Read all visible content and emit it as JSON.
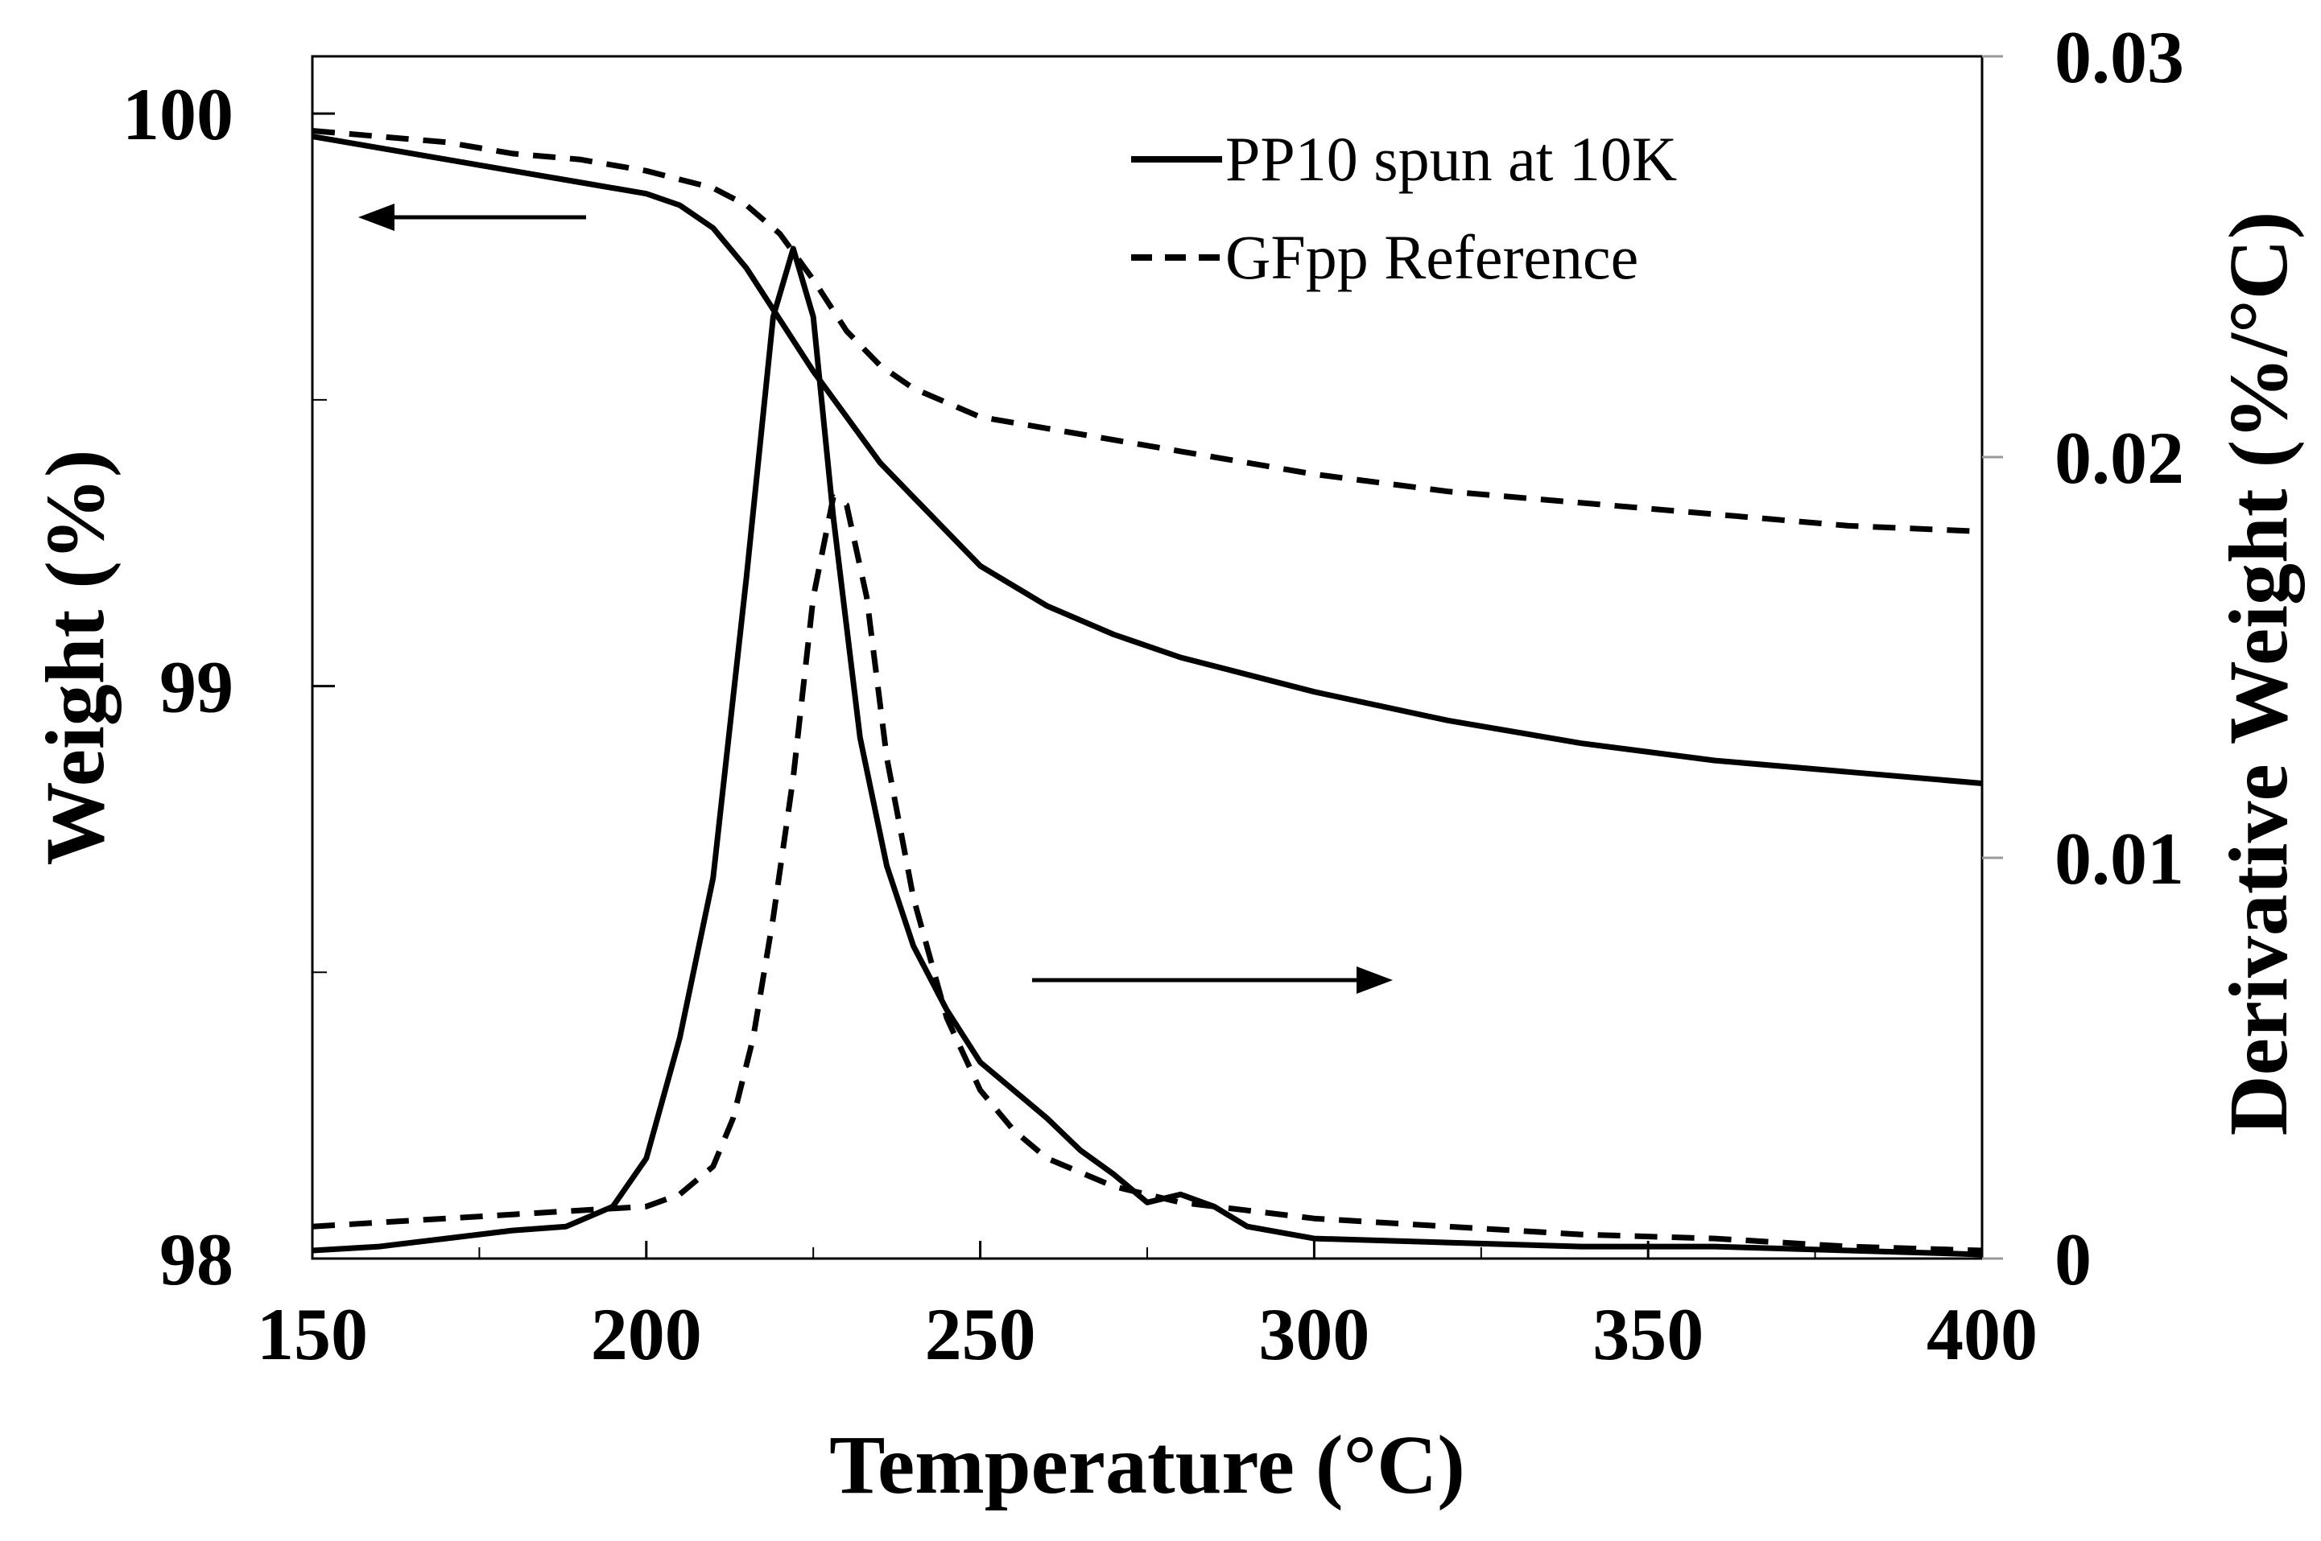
{
  "chart_data": {
    "type": "line",
    "title": "",
    "xlabel": "Temperature (°C)",
    "ylabel_left": "Weight (%)",
    "ylabel_right": "Derivative Weight (%/°C)",
    "xlim": [
      150,
      400
    ],
    "ylim_left": [
      98,
      100.1
    ],
    "ylim_right": [
      0,
      0.03
    ],
    "x_ticks": [
      150,
      200,
      250,
      300,
      350,
      400
    ],
    "x_tick_labels": [
      "150",
      "200",
      "250",
      "300",
      "350",
      "400"
    ],
    "y_left_ticks": [
      98,
      99,
      100
    ],
    "y_left_tick_labels": [
      "98",
      "99",
      "100"
    ],
    "y_right_ticks": [
      0,
      0.01,
      0.02,
      0.03
    ],
    "y_right_tick_labels": [
      "0",
      "0.01",
      "0.02",
      "0.03"
    ],
    "grid": false,
    "legend": {
      "position": "top-right",
      "entries": [
        {
          "label": "PP10 spun at 10K",
          "style": "solid"
        },
        {
          "label": "GFpp Reference",
          "style": "dashed"
        }
      ]
    },
    "annotations": [
      {
        "type": "arrow",
        "direction": "left",
        "meaning": "weight curves use left axis"
      },
      {
        "type": "arrow",
        "direction": "right",
        "meaning": "derivative curves use right axis"
      }
    ],
    "series": [
      {
        "name": "PP10 spun at 10K weight",
        "axis": "left",
        "style": "solid",
        "x": [
          150,
          160,
          170,
          180,
          190,
          200,
          205,
          210,
          215,
          220,
          225,
          230,
          235,
          240,
          250,
          260,
          270,
          280,
          290,
          300,
          320,
          340,
          360,
          380,
          400
        ],
        "y": [
          99.96,
          99.94,
          99.92,
          99.9,
          99.88,
          99.86,
          99.84,
          99.8,
          99.73,
          99.64,
          99.55,
          99.47,
          99.39,
          99.33,
          99.21,
          99.14,
          99.09,
          99.05,
          99.02,
          98.99,
          98.94,
          98.9,
          98.87,
          98.85,
          98.83
        ]
      },
      {
        "name": "GFpp Reference weight",
        "axis": "left",
        "style": "dashed",
        "x": [
          150,
          160,
          170,
          180,
          190,
          200,
          210,
          215,
          220,
          225,
          230,
          235,
          240,
          250,
          260,
          270,
          280,
          290,
          300,
          320,
          340,
          360,
          380,
          400
        ],
        "y": [
          99.97,
          99.96,
          99.95,
          99.93,
          99.92,
          99.9,
          99.87,
          99.84,
          99.79,
          99.71,
          99.62,
          99.56,
          99.52,
          99.47,
          99.45,
          99.43,
          99.41,
          99.39,
          99.37,
          99.34,
          99.32,
          99.3,
          99.28,
          99.27
        ]
      },
      {
        "name": "PP10 spun at 10K derivative",
        "axis": "right",
        "style": "solid",
        "x": [
          150,
          160,
          170,
          180,
          188,
          195,
          200,
          205,
          210,
          215,
          219,
          222,
          225,
          228,
          232,
          236,
          240,
          245,
          250,
          255,
          260,
          265,
          270,
          275,
          280,
          285,
          290,
          300,
          320,
          340,
          360,
          380,
          400
        ],
        "y": [
          0.0002,
          0.0003,
          0.0005,
          0.0007,
          0.0008,
          0.0013,
          0.0025,
          0.0055,
          0.0095,
          0.017,
          0.0235,
          0.0252,
          0.0235,
          0.0185,
          0.013,
          0.0098,
          0.0078,
          0.0062,
          0.0049,
          0.0042,
          0.0035,
          0.0027,
          0.0021,
          0.0014,
          0.0016,
          0.0013,
          0.0008,
          0.0005,
          0.0004,
          0.0003,
          0.0003,
          0.0002,
          0.0001
        ]
      },
      {
        "name": "GFpp Reference derivative",
        "axis": "right",
        "style": "dashed",
        "x": [
          150,
          160,
          170,
          180,
          190,
          200,
          205,
          210,
          213,
          216,
          219,
          222,
          225,
          228,
          230,
          233,
          236,
          240,
          245,
          250,
          255,
          260,
          270,
          280,
          290,
          300,
          320,
          340,
          360,
          380,
          400
        ],
        "y": [
          0.0008,
          0.0009,
          0.001,
          0.0011,
          0.0012,
          0.0013,
          0.0016,
          0.0023,
          0.0035,
          0.0055,
          0.0085,
          0.012,
          0.0165,
          0.019,
          0.0188,
          0.0165,
          0.0125,
          0.009,
          0.006,
          0.0042,
          0.0032,
          0.0025,
          0.0018,
          0.0014,
          0.0012,
          0.001,
          0.0008,
          0.0006,
          0.0005,
          0.0003,
          0.0002
        ]
      }
    ]
  }
}
